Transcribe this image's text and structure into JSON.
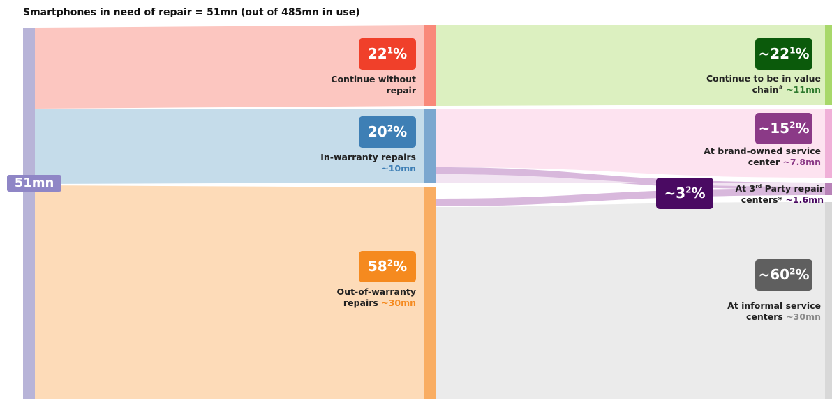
{
  "title": "Smartphones in need of repair = 51mn (out of 485mn in use)",
  "source": {
    "label": "51mn"
  },
  "nodes": [
    {
      "box": [
        {
          "text": "22"
        },
        {
          "sup": "1"
        },
        {
          "text": "%"
        }
      ],
      "lines": [
        [
          {
            "text": "Continue without"
          }
        ],
        [
          {
            "text": "repair"
          }
        ]
      ]
    },
    {
      "box": [
        {
          "text": "20"
        },
        {
          "sup": "2"
        },
        {
          "text": "%"
        }
      ],
      "lines": [
        [
          {
            "text": "In-warranty repairs"
          }
        ],
        [
          {
            "amount": "~10mn"
          }
        ]
      ]
    },
    {
      "box": [
        {
          "text": "58"
        },
        {
          "sup": "2"
        },
        {
          "text": "%"
        }
      ],
      "lines": [
        [
          {
            "text": "Out-of-warranty"
          }
        ],
        [
          {
            "text": "repairs "
          },
          {
            "amount": "~30mn"
          }
        ]
      ]
    },
    {
      "box": [
        {
          "text": "~22"
        },
        {
          "sup": "1"
        },
        {
          "text": "%"
        }
      ],
      "lines": [
        [
          {
            "text": "Continue to be in value"
          }
        ],
        [
          {
            "text": "chain"
          },
          {
            "sup": "#"
          },
          {
            "text": " "
          },
          {
            "amount": "~11mn"
          }
        ]
      ]
    },
    {
      "box": [
        {
          "text": "~15"
        },
        {
          "sup": "2"
        },
        {
          "text": "%"
        }
      ],
      "lines": [
        [
          {
            "text": "At brand-owned service"
          }
        ],
        [
          {
            "text": "center "
          },
          {
            "amount": "~7.8mn"
          }
        ]
      ]
    },
    {
      "box": [
        {
          "text": "~3"
        },
        {
          "sup": "2"
        },
        {
          "text": "%"
        }
      ],
      "lines": [
        [
          {
            "text": "At 3"
          },
          {
            "sup": "rd"
          },
          {
            "text": " Party repair"
          }
        ],
        [
          {
            "text": "centers* "
          },
          {
            "amount": "~1.6mn"
          }
        ]
      ]
    },
    {
      "box": [
        {
          "text": "~60"
        },
        {
          "sup": "2"
        },
        {
          "text": "%"
        }
      ],
      "lines": [
        [
          {
            "text": "At informal service"
          }
        ],
        [
          {
            "text": "centers "
          },
          {
            "amount": "~30mn"
          }
        ]
      ]
    }
  ]
}
